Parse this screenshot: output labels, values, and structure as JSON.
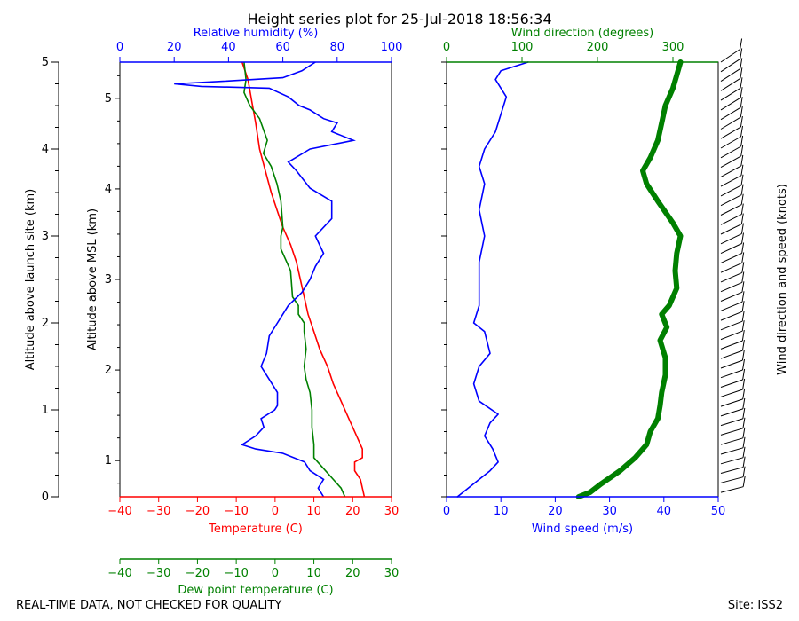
{
  "title": "Height series plot for 25-Jul-2018 18:56:34",
  "footer_left": "REAL-TIME DATA, NOT CHECKED FOR QUALITY",
  "footer_right": "Site: ISS2",
  "colors": {
    "temperature": "#ff0000",
    "dewpoint": "#008000",
    "humidity": "#0000ff",
    "wind_speed": "#0000ff",
    "wind_direction": "#008000",
    "barbs": "#000000"
  },
  "chart_data": [
    {
      "type": "line",
      "name": "thermodynamic-panel",
      "ylabel_left": "Altitude above launch site (km)",
      "ylabel_msl": "Altitude above MSL (km)",
      "left_ylim": [
        0,
        5
      ],
      "left_ticks": [
        0,
        1,
        2,
        3,
        4,
        5
      ],
      "msl_ticks": [
        1,
        2,
        3,
        4,
        5
      ],
      "msl_ylim": [
        0.6,
        5.4
      ],
      "temperature_axis": {
        "label": "Temperature (C)",
        "lim": [
          -40,
          30
        ],
        "ticks": [
          -40,
          -30,
          -20,
          -10,
          0,
          10,
          20,
          30
        ]
      },
      "dewpoint_axis": {
        "label": "Dew point temperature (C)",
        "lim": [
          -40,
          30
        ],
        "ticks": [
          -40,
          -30,
          -20,
          -10,
          0,
          10,
          20,
          30
        ]
      },
      "humidity_axis": {
        "label": "Relative humidity (%)",
        "lim": [
          0,
          100
        ],
        "ticks": [
          0,
          20,
          40,
          60,
          80,
          100
        ]
      },
      "series": [
        {
          "name": "Temperature",
          "color": "#ff0000",
          "points": [
            [
              23,
              0
            ],
            [
              22,
              0.2
            ],
            [
              20.5,
              0.3
            ],
            [
              20.5,
              0.4
            ],
            [
              22.5,
              0.45
            ],
            [
              22.5,
              0.55
            ],
            [
              21,
              0.7
            ],
            [
              19,
              0.9
            ],
            [
              17,
              1.1
            ],
            [
              15,
              1.3
            ],
            [
              13.5,
              1.5
            ],
            [
              11.5,
              1.7
            ],
            [
              10,
              1.9
            ],
            [
              8.5,
              2.1
            ],
            [
              7,
              2.4
            ],
            [
              5.5,
              2.7
            ],
            [
              4,
              2.9
            ],
            [
              2,
              3.1
            ],
            [
              0.5,
              3.3
            ],
            [
              -1,
              3.5
            ],
            [
              -2.5,
              3.75
            ],
            [
              -4,
              4.0
            ],
            [
              -5,
              4.3
            ],
            [
              -6,
              4.55
            ],
            [
              -7,
              4.8
            ],
            [
              -8.5,
              5.0
            ]
          ]
        },
        {
          "name": "Dew point",
          "color": "#008000",
          "points": [
            [
              18,
              0
            ],
            [
              17,
              0.1
            ],
            [
              15,
              0.2
            ],
            [
              12,
              0.35
            ],
            [
              10,
              0.45
            ],
            [
              10,
              0.6
            ],
            [
              9.5,
              0.8
            ],
            [
              9.5,
              1.0
            ],
            [
              9,
              1.2
            ],
            [
              8,
              1.35
            ],
            [
              7.5,
              1.5
            ],
            [
              8,
              1.7
            ],
            [
              7.5,
              1.9
            ],
            [
              7.5,
              2.0
            ],
            [
              6,
              2.1
            ],
            [
              6,
              2.2
            ],
            [
              4.5,
              2.3
            ],
            [
              4,
              2.6
            ],
            [
              3,
              2.7
            ],
            [
              1.5,
              2.85
            ],
            [
              1.5,
              3.0
            ],
            [
              2,
              3.1
            ],
            [
              1.5,
              3.4
            ],
            [
              0.5,
              3.6
            ],
            [
              -1,
              3.8
            ],
            [
              -3,
              3.95
            ],
            [
              -2,
              4.1
            ],
            [
              -4,
              4.35
            ],
            [
              -6.5,
              4.5
            ],
            [
              -8,
              4.65
            ],
            [
              -7.5,
              4.8
            ],
            [
              -8,
              5.0
            ]
          ]
        },
        {
          "name": "Relative humidity",
          "color": "#0000ff",
          "points": [
            [
              75,
              0
            ],
            [
              73,
              0.1
            ],
            [
              75,
              0.2
            ],
            [
              70,
              0.3
            ],
            [
              68,
              0.4
            ],
            [
              60,
              0.5
            ],
            [
              50,
              0.55
            ],
            [
              45,
              0.6
            ],
            [
              50,
              0.7
            ],
            [
              53,
              0.8
            ],
            [
              52,
              0.9
            ],
            [
              57,
              1.0
            ],
            [
              58,
              1.05
            ],
            [
              58,
              1.2
            ],
            [
              55,
              1.35
            ],
            [
              52,
              1.5
            ],
            [
              54,
              1.65
            ],
            [
              55,
              1.85
            ],
            [
              58,
              2.0
            ],
            [
              62,
              2.2
            ],
            [
              67,
              2.35
            ],
            [
              70,
              2.5
            ],
            [
              72,
              2.65
            ],
            [
              75,
              2.8
            ],
            [
              72,
              3.0
            ],
            [
              78,
              3.2
            ],
            [
              78,
              3.4
            ],
            [
              70,
              3.55
            ],
            [
              65,
              3.75
            ],
            [
              62,
              3.85
            ],
            [
              70,
              4.0
            ],
            [
              86,
              4.1
            ],
            [
              78,
              4.2
            ],
            [
              80,
              4.3
            ],
            [
              75,
              4.35
            ],
            [
              70,
              4.45
            ],
            [
              66,
              4.5
            ],
            [
              62,
              4.6
            ],
            [
              55,
              4.7
            ],
            [
              30,
              4.72
            ],
            [
              20,
              4.75
            ],
            [
              38,
              4.78
            ],
            [
              60,
              4.82
            ],
            [
              67,
              4.9
            ],
            [
              72,
              5.0
            ]
          ]
        }
      ]
    },
    {
      "type": "line",
      "name": "wind-panel",
      "ylim": [
        0,
        5
      ],
      "wind_speed_axis": {
        "label": "Wind speed (m/s)",
        "lim": [
          0,
          50
        ],
        "ticks": [
          0,
          10,
          20,
          30,
          40,
          50
        ]
      },
      "wind_direction_axis": {
        "label": "Wind direction (degrees)",
        "lim": [
          0,
          360
        ],
        "ticks": [
          0,
          100,
          200,
          300
        ]
      },
      "barb_label": "Wind direction and speed (knots)",
      "series": [
        {
          "name": "Wind speed",
          "color": "#0000ff",
          "points": [
            [
              2,
              0
            ],
            [
              5,
              0.15
            ],
            [
              8,
              0.3
            ],
            [
              9.5,
              0.4
            ],
            [
              8.5,
              0.55
            ],
            [
              7,
              0.7
            ],
            [
              8,
              0.85
            ],
            [
              9.5,
              0.95
            ],
            [
              6,
              1.1
            ],
            [
              5,
              1.3
            ],
            [
              6,
              1.5
            ],
            [
              8,
              1.65
            ],
            [
              7,
              1.9
            ],
            [
              5,
              2.0
            ],
            [
              6,
              2.2
            ],
            [
              6,
              2.5
            ],
            [
              6,
              2.7
            ],
            [
              7,
              3.0
            ],
            [
              6,
              3.3
            ],
            [
              7,
              3.6
            ],
            [
              6,
              3.8
            ],
            [
              7,
              4.0
            ],
            [
              9,
              4.2
            ],
            [
              10,
              4.4
            ],
            [
              11,
              4.6
            ],
            [
              9,
              4.8
            ],
            [
              10,
              4.9
            ],
            [
              15,
              5.0
            ]
          ]
        },
        {
          "name": "Wind direction",
          "color": "#008000",
          "points": [
            [
              175,
              0
            ],
            [
              190,
              0.05
            ],
            [
              205,
              0.15
            ],
            [
              230,
              0.3
            ],
            [
              250,
              0.45
            ],
            [
              265,
              0.6
            ],
            [
              270,
              0.75
            ],
            [
              280,
              0.9
            ],
            [
              283,
              1.05
            ],
            [
              285,
              1.2
            ],
            [
              290,
              1.4
            ],
            [
              290,
              1.6
            ],
            [
              283,
              1.8
            ],
            [
              292,
              1.95
            ],
            [
              285,
              2.1
            ],
            [
              295,
              2.2
            ],
            [
              305,
              2.4
            ],
            [
              303,
              2.6
            ],
            [
              305,
              2.8
            ],
            [
              310,
              3.0
            ],
            [
              300,
              3.15
            ],
            [
              280,
              3.4
            ],
            [
              265,
              3.6
            ],
            [
              260,
              3.75
            ],
            [
              270,
              3.9
            ],
            [
              280,
              4.1
            ],
            [
              285,
              4.3
            ],
            [
              290,
              4.5
            ],
            [
              300,
              4.7
            ],
            [
              305,
              4.85
            ],
            [
              310,
              5.0
            ]
          ]
        }
      ]
    }
  ]
}
